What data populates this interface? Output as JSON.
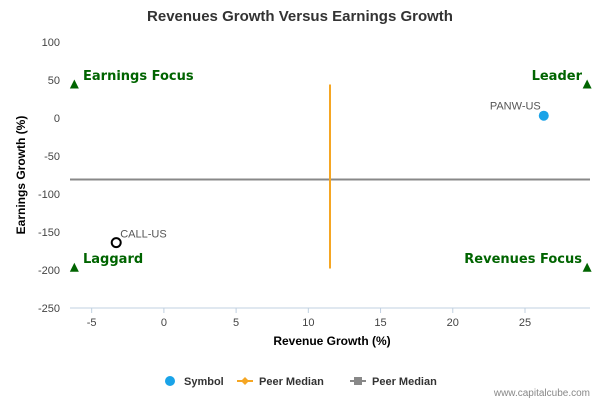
{
  "chart_data": {
    "type": "scatter",
    "title": "Revenues Growth Versus Earnings Growth",
    "xlabel": "Revenue Growth (%)",
    "ylabel": "Earnings Growth (%)",
    "xlim": [
      -6.5,
      29.5
    ],
    "ylim": [
      -250,
      100
    ],
    "x_ticks": [
      -5,
      0,
      5,
      10,
      15,
      20,
      25
    ],
    "y_ticks": [
      100,
      50,
      0,
      -50,
      -100,
      -150,
      -200,
      -250
    ],
    "grid": false,
    "points": [
      {
        "label": "PANW-US",
        "x": 26.3,
        "y": 3,
        "style": "filled",
        "color": "#1aa3e8"
      },
      {
        "label": "CALL-US",
        "x": -3.3,
        "y": -164,
        "style": "hollow",
        "color": "#000000"
      }
    ],
    "peer_median_revenue": 11.5,
    "peer_median_earnings": -81,
    "peer_median_revenue_range": [
      -198,
      44
    ],
    "quadrant_labels": {
      "top_left": "Earnings Focus",
      "top_right": "Leader",
      "bottom_left": "Laggard",
      "bottom_right": "Revenues Focus"
    },
    "quadrant_markers": [
      {
        "x": -6.2,
        "y": 44
      },
      {
        "x": 29.3,
        "y": 44
      },
      {
        "x": -6.2,
        "y": -197
      },
      {
        "x": 29.3,
        "y": -197
      }
    ],
    "legend": [
      {
        "label": "Symbol",
        "marker": "circle",
        "color": "#1aa3e8"
      },
      {
        "label": "Peer Median",
        "marker": "diamond-line",
        "color": "#f5a623"
      },
      {
        "label": "Peer Median",
        "marker": "square-line",
        "color": "#888888"
      }
    ],
    "legend_position": "bottom",
    "colors": {
      "quadrant_text": "#006400",
      "vertical_median": "#f5a623",
      "horizontal_median": "#888888",
      "axis_line": "#c0d0e0"
    }
  },
  "credit": "www.capitalcube.com"
}
